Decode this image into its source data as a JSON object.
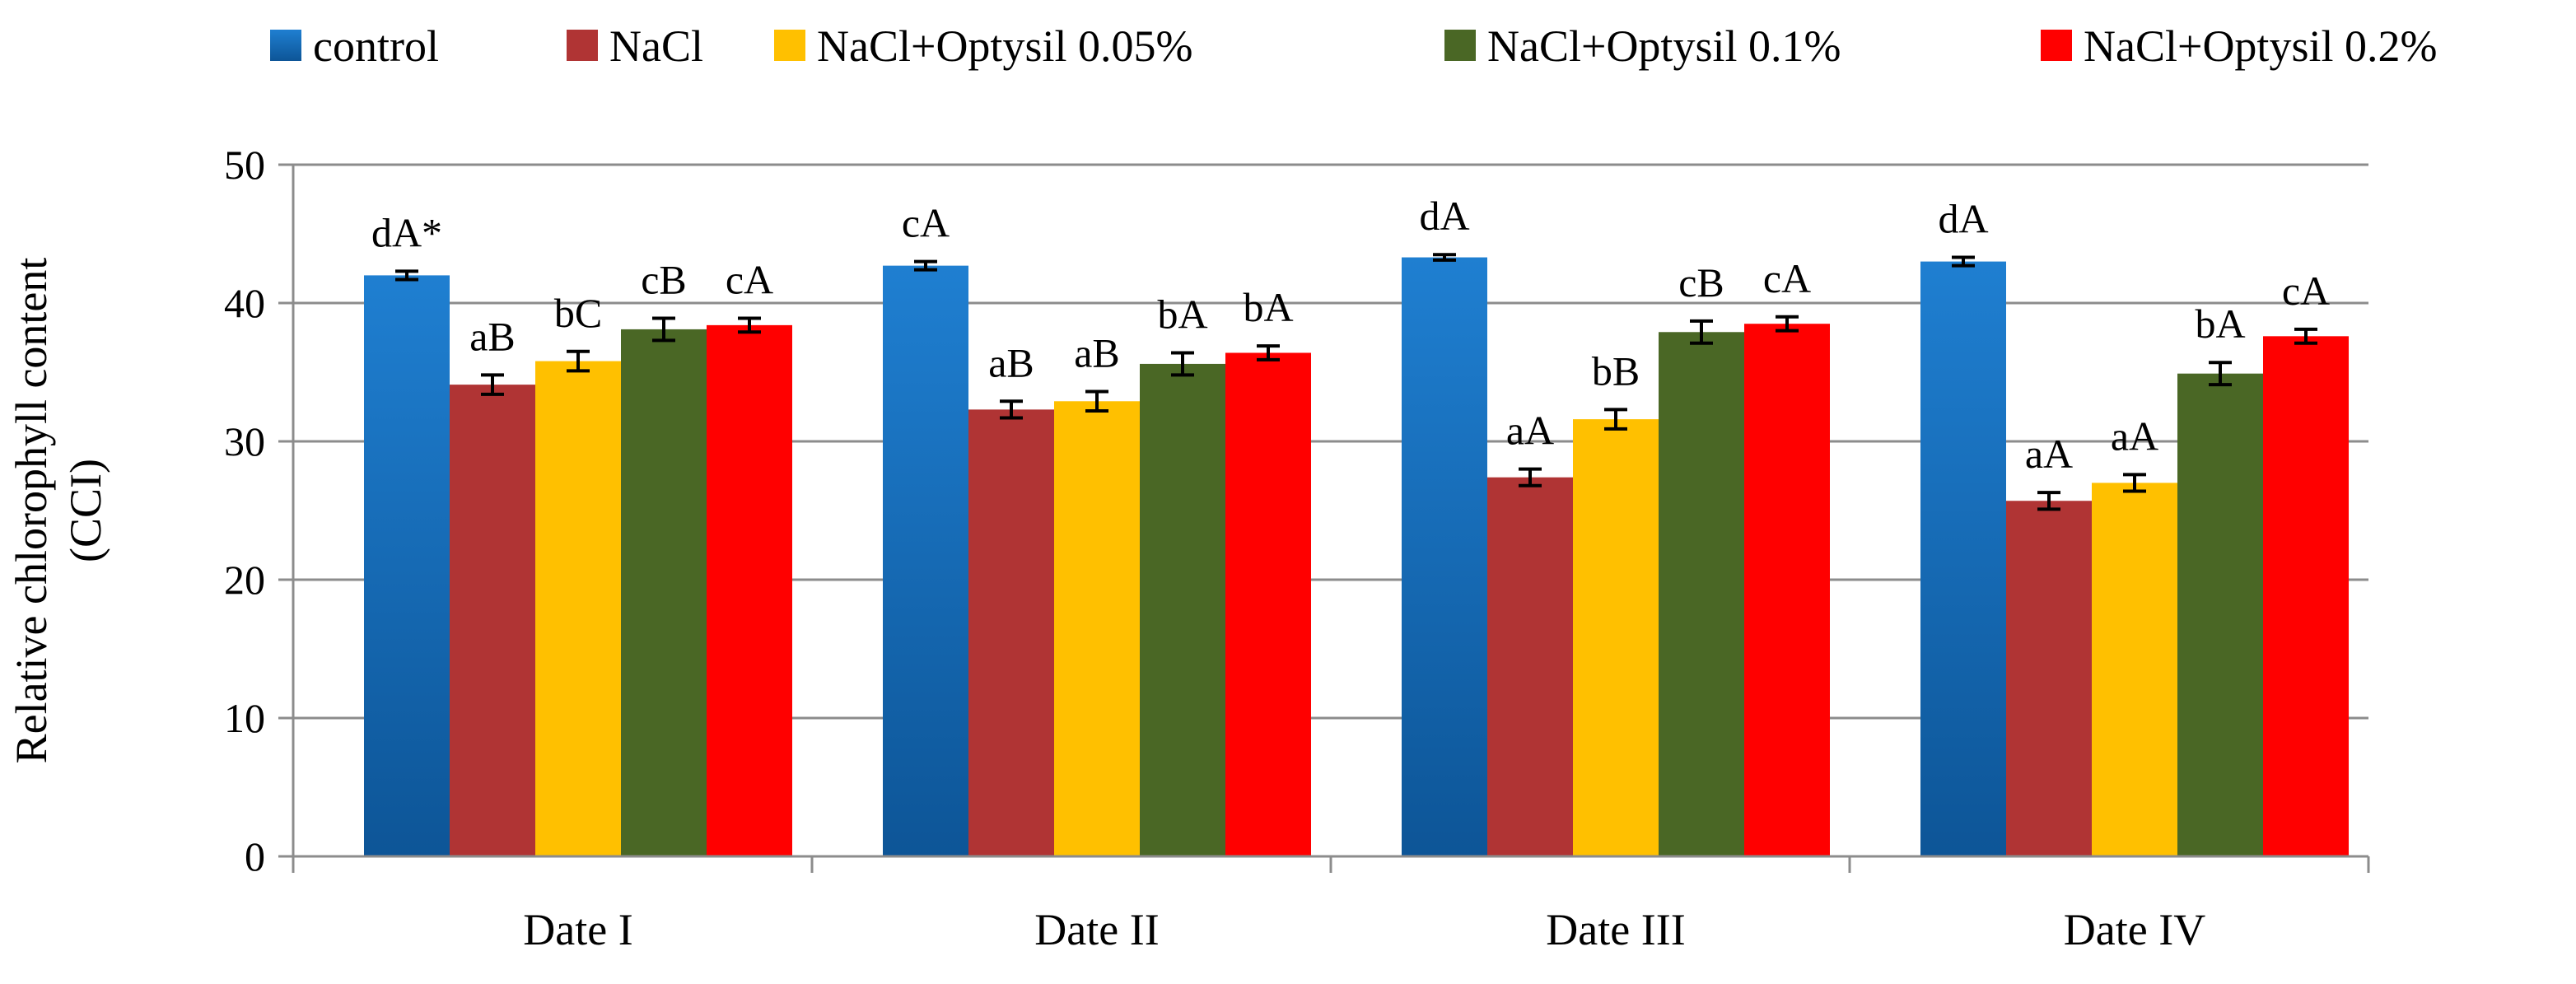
{
  "chart_data": {
    "type": "bar",
    "title": "",
    "xlabel": "",
    "ylabel": "Relative chlorophyll content",
    "ylabel_line2": "(CCI)",
    "ylim": [
      0,
      50
    ],
    "yticks": [
      0,
      10,
      20,
      30,
      40,
      50
    ],
    "grid": true,
    "legend_position": "top",
    "categories": [
      "Date I",
      "Date II",
      "Date III",
      "Date IV"
    ],
    "series": [
      {
        "name": "control",
        "color": "#1f7fd1",
        "color_dark": "#0d5597",
        "values": [
          42.0,
          42.7,
          43.3,
          43.0
        ],
        "errors": [
          0.3,
          0.3,
          0.2,
          0.3
        ],
        "labels": [
          "dA*",
          "cA",
          "dA",
          "dA"
        ]
      },
      {
        "name": "NaCl",
        "color": "#b03434",
        "values": [
          34.1,
          32.3,
          27.4,
          25.7
        ],
        "errors": [
          0.7,
          0.6,
          0.6,
          0.6
        ],
        "labels": [
          "aB",
          "aB",
          "aA",
          "aA"
        ]
      },
      {
        "name": "NaCl+Optysil 0.05%",
        "color": "#ffc000",
        "values": [
          35.8,
          32.9,
          31.6,
          27.0
        ],
        "errors": [
          0.7,
          0.7,
          0.7,
          0.6
        ],
        "labels": [
          "bC",
          "aB",
          "bB",
          "aA"
        ]
      },
      {
        "name": "NaCl+Optysil 0.1%",
        "color": "#4a6725",
        "values": [
          38.1,
          35.6,
          37.9,
          34.9
        ],
        "errors": [
          0.8,
          0.8,
          0.8,
          0.8
        ],
        "labels": [
          "cB",
          "bA",
          "cB",
          "bA"
        ]
      },
      {
        "name": "NaCl+Optysil 0.2%",
        "color": "#ff0000",
        "values": [
          38.4,
          36.4,
          38.5,
          37.6
        ],
        "errors": [
          0.5,
          0.5,
          0.5,
          0.5
        ],
        "labels": [
          "cA",
          "bA",
          "cA",
          "cA"
        ]
      }
    ]
  }
}
